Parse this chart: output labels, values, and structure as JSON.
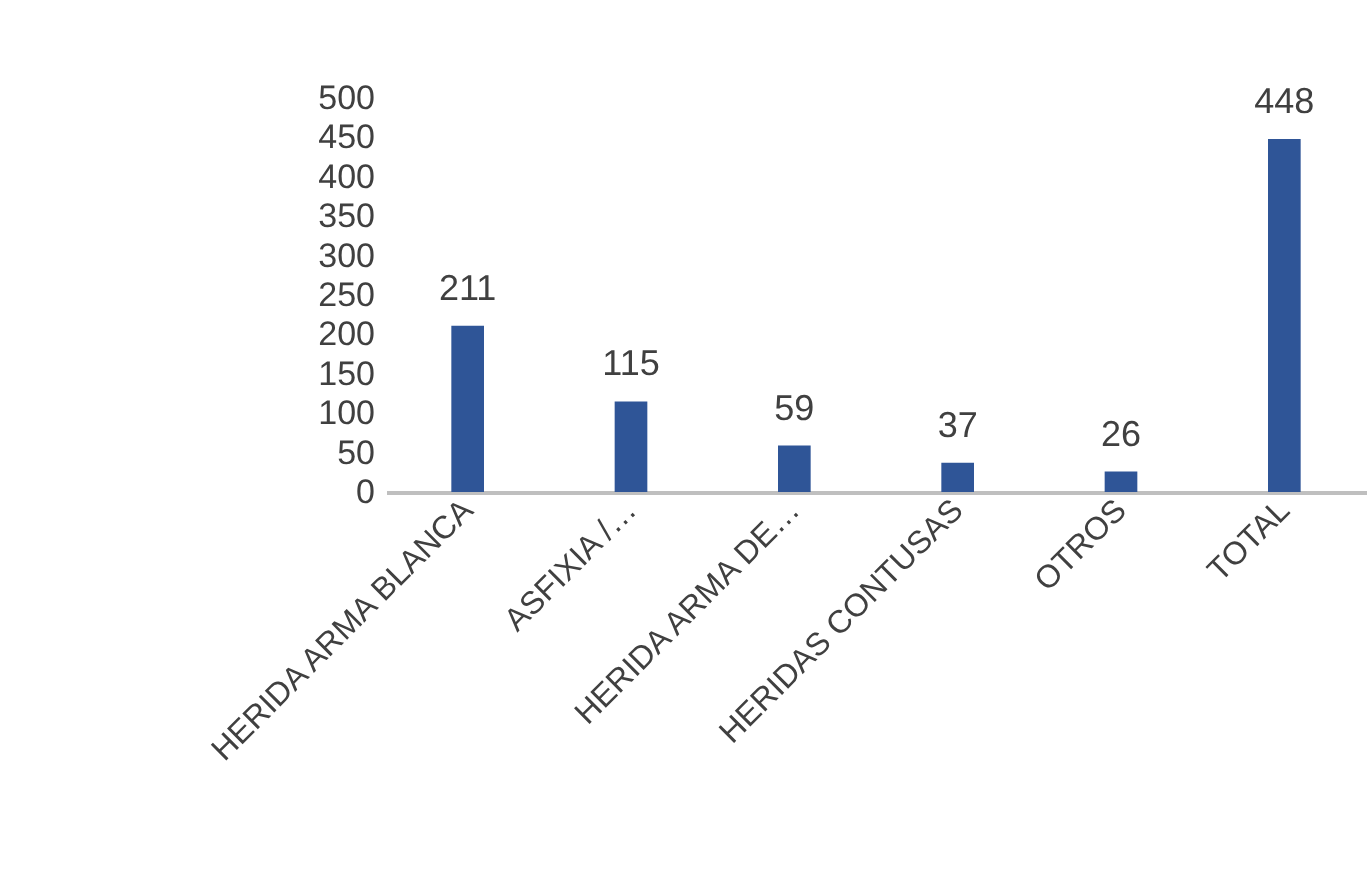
{
  "chart_data": {
    "type": "bar",
    "categories": [
      "HERIDA ARMA BLANCA",
      "ASFIXIA /…",
      "HERIDA ARMA DE…",
      "HERIDAS CONTUSAS",
      "OTROS",
      "TOTAL"
    ],
    "values": [
      211,
      115,
      59,
      37,
      26,
      448
    ],
    "color": "#2f5597",
    "ylim": [
      0,
      500
    ],
    "yticks": [
      0,
      50,
      100,
      150,
      200,
      250,
      300,
      350,
      400,
      450,
      500
    ],
    "data_labels": true,
    "grid": false
  }
}
